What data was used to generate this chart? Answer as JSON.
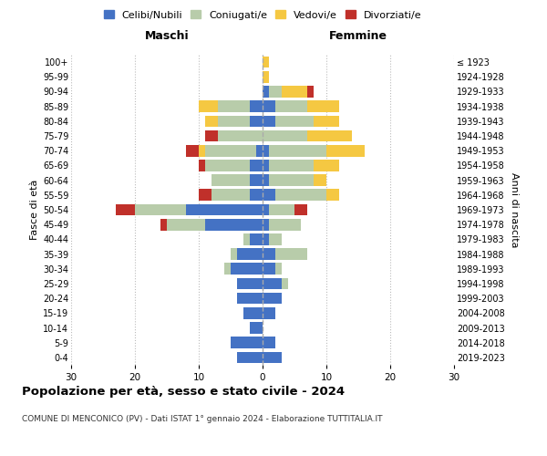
{
  "age_groups": [
    "0-4",
    "5-9",
    "10-14",
    "15-19",
    "20-24",
    "25-29",
    "30-34",
    "35-39",
    "40-44",
    "45-49",
    "50-54",
    "55-59",
    "60-64",
    "65-69",
    "70-74",
    "75-79",
    "80-84",
    "85-89",
    "90-94",
    "95-99",
    "100+"
  ],
  "birth_years": [
    "2019-2023",
    "2014-2018",
    "2009-2013",
    "2004-2008",
    "1999-2003",
    "1994-1998",
    "1989-1993",
    "1984-1988",
    "1979-1983",
    "1974-1978",
    "1969-1973",
    "1964-1968",
    "1959-1963",
    "1954-1958",
    "1949-1953",
    "1944-1948",
    "1939-1943",
    "1934-1938",
    "1929-1933",
    "1924-1928",
    "≤ 1923"
  ],
  "males": {
    "celibi": [
      4,
      5,
      2,
      3,
      4,
      4,
      5,
      4,
      2,
      9,
      12,
      2,
      2,
      2,
      1,
      0,
      2,
      2,
      0,
      0,
      0
    ],
    "coniugati": [
      0,
      0,
      0,
      0,
      0,
      0,
      1,
      1,
      1,
      6,
      8,
      6,
      6,
      7,
      8,
      7,
      5,
      5,
      0,
      0,
      0
    ],
    "vedovi": [
      0,
      0,
      0,
      0,
      0,
      0,
      0,
      0,
      0,
      0,
      0,
      0,
      0,
      0,
      1,
      0,
      2,
      3,
      0,
      0,
      0
    ],
    "divorziati": [
      0,
      0,
      0,
      0,
      0,
      0,
      0,
      0,
      0,
      1,
      3,
      2,
      0,
      1,
      2,
      2,
      0,
      0,
      0,
      0,
      0
    ]
  },
  "females": {
    "nubili": [
      3,
      2,
      0,
      2,
      3,
      3,
      2,
      2,
      1,
      1,
      1,
      2,
      1,
      1,
      1,
      0,
      2,
      2,
      1,
      0,
      0
    ],
    "coniugate": [
      0,
      0,
      0,
      0,
      0,
      1,
      1,
      5,
      2,
      5,
      4,
      8,
      7,
      7,
      9,
      7,
      6,
      5,
      2,
      0,
      0
    ],
    "vedove": [
      0,
      0,
      0,
      0,
      0,
      0,
      0,
      0,
      0,
      0,
      0,
      2,
      2,
      4,
      6,
      7,
      4,
      5,
      4,
      1,
      1
    ],
    "divorziate": [
      0,
      0,
      0,
      0,
      0,
      0,
      0,
      0,
      0,
      0,
      2,
      0,
      0,
      0,
      0,
      0,
      0,
      0,
      1,
      0,
      0
    ]
  },
  "colors": {
    "celibi": "#4472C4",
    "coniugati": "#B8CCAA",
    "vedovi": "#F5C842",
    "divorziati": "#C0302A"
  },
  "title": "Popolazione per età, sesso e stato civile - 2024",
  "subtitle": "COMUNE DI MENCONICO (PV) - Dati ISTAT 1° gennaio 2024 - Elaborazione TUTTITALIA.IT",
  "header_left": "Maschi",
  "header_right": "Femmine",
  "ylabel_left": "Fasce di età",
  "ylabel_right": "Anni di nascita",
  "xlim": 30,
  "legend_labels": [
    "Celibi/Nubili",
    "Coniugati/e",
    "Vedovi/e",
    "Divorziati/e"
  ]
}
